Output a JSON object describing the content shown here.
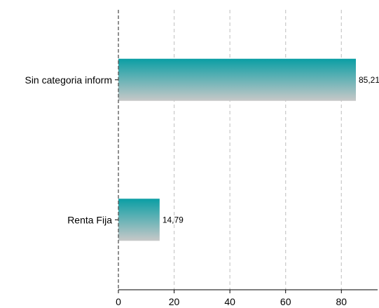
{
  "chart_data": {
    "type": "bar",
    "orientation": "horizontal",
    "categories": [
      "Sin categoria inform",
      "Renta  Fija"
    ],
    "values": [
      85.21,
      14.79
    ],
    "value_labels": [
      "85,21",
      "14,79"
    ],
    "xlim": [
      0,
      93
    ],
    "xticks": [
      0,
      20,
      40,
      60,
      80
    ],
    "xtick_labels": [
      "0",
      "20",
      "40",
      "60",
      "80"
    ],
    "xlabel": "",
    "ylabel": "",
    "title": "",
    "grid": "vertical-dashed",
    "colors": {
      "bar_top": "#0a9ea4",
      "bar_bottom": "#c8c8c8",
      "grid": "#c8c8c8",
      "axis": "#000000",
      "zero_line": "#555555"
    }
  }
}
